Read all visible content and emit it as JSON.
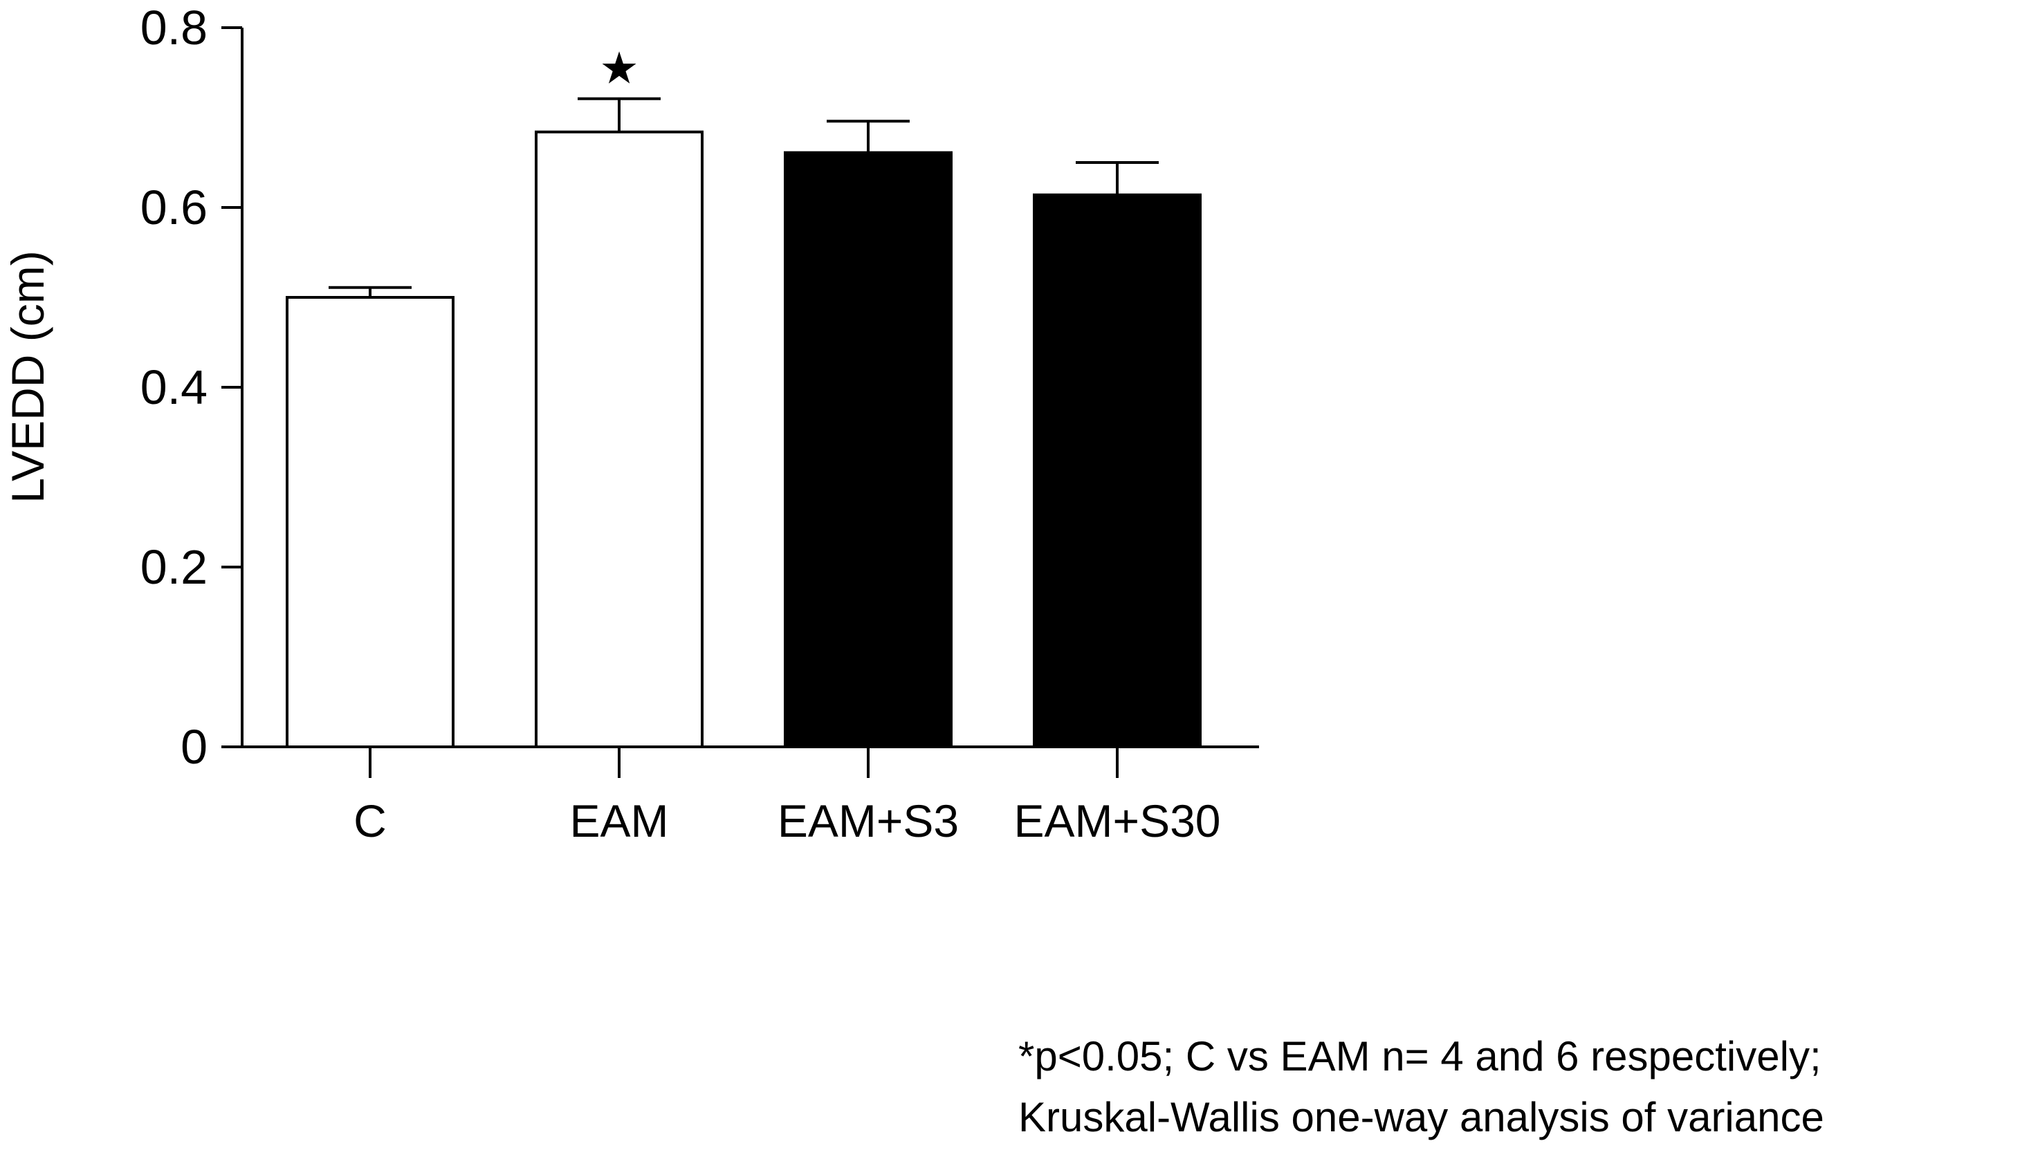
{
  "chart_data": {
    "type": "bar",
    "title": "",
    "xlabel": "",
    "ylabel": "LVEDD (cm)",
    "ylim": [
      0,
      0.8
    ],
    "yticks": [
      0,
      0.2,
      0.4,
      0.6,
      0.8
    ],
    "ytick_labels": [
      "0",
      "0.2",
      "0.4",
      "0.6",
      "0.8"
    ],
    "categories": [
      "C",
      "EAM",
      "EAM+S3",
      "EAM+S30"
    ],
    "values": [
      0.5,
      0.684,
      0.661,
      0.614
    ],
    "errors": [
      0.011,
      0.037,
      0.035,
      0.036
    ],
    "bar_fills": [
      "#ffffff",
      "#ffffff",
      "#000000",
      "#000000"
    ],
    "significance": [
      {
        "category": "EAM",
        "marker": "★"
      }
    ],
    "grid": false,
    "legend": "none"
  },
  "footnote": {
    "line1": "*p<0.05; C vs EAM n= 4 and 6 respectively;",
    "line2": "Kruskal-Wallis one-way analysis of variance"
  }
}
